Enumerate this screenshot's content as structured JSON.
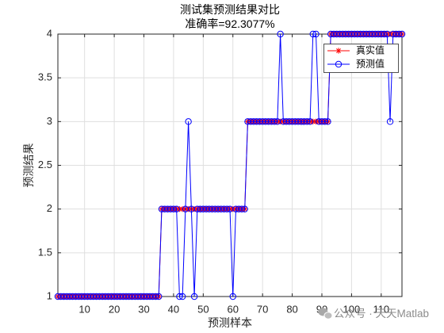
{
  "chart_data": {
    "type": "line",
    "title": "测试集预测结果对比",
    "subtitle": "准确率=92.3077%",
    "xlabel": "预测样本",
    "ylabel": "预测结果",
    "xlim": [
      1,
      117
    ],
    "ylim": [
      1,
      4
    ],
    "xticks": [
      10,
      20,
      30,
      40,
      50,
      60,
      70,
      80,
      90,
      100,
      110
    ],
    "xtick_labels": [
      "10",
      "20",
      "30",
      "40",
      "50",
      "60",
      "70",
      "80",
      "90",
      "100",
      "110"
    ],
    "yticks": [
      1,
      1.5,
      2,
      2.5,
      3,
      3.5,
      4
    ],
    "ytick_labels": [
      "1",
      "1.5",
      "2",
      "2.5",
      "3",
      "3.5",
      "4"
    ],
    "grid": true,
    "legend_placement": "top-right",
    "x": [
      1,
      2,
      3,
      4,
      5,
      6,
      7,
      8,
      9,
      10,
      11,
      12,
      13,
      14,
      15,
      16,
      17,
      18,
      19,
      20,
      21,
      22,
      23,
      24,
      25,
      26,
      27,
      28,
      29,
      30,
      31,
      32,
      33,
      34,
      35,
      36,
      37,
      38,
      39,
      40,
      41,
      42,
      43,
      44,
      45,
      46,
      47,
      48,
      49,
      50,
      51,
      52,
      53,
      54,
      55,
      56,
      57,
      58,
      59,
      60,
      61,
      62,
      63,
      64,
      65,
      66,
      67,
      68,
      69,
      70,
      71,
      72,
      73,
      74,
      75,
      76,
      77,
      78,
      79,
      80,
      81,
      82,
      83,
      84,
      85,
      86,
      87,
      88,
      89,
      90,
      91,
      92,
      93,
      94,
      95,
      96,
      97,
      98,
      99,
      100,
      101,
      102,
      103,
      104,
      105,
      106,
      107,
      108,
      109,
      110,
      111,
      112,
      113,
      114,
      115,
      116,
      117
    ],
    "series": [
      {
        "name": "真实值",
        "color": "#ff0000",
        "marker": "asterisk",
        "values": [
          1,
          1,
          1,
          1,
          1,
          1,
          1,
          1,
          1,
          1,
          1,
          1,
          1,
          1,
          1,
          1,
          1,
          1,
          1,
          1,
          1,
          1,
          1,
          1,
          1,
          1,
          1,
          1,
          1,
          1,
          1,
          1,
          1,
          1,
          1,
          2,
          2,
          2,
          2,
          2,
          2,
          2,
          2,
          2,
          2,
          2,
          2,
          2,
          2,
          2,
          2,
          2,
          2,
          2,
          2,
          2,
          2,
          2,
          2,
          2,
          2,
          2,
          2,
          2,
          3,
          3,
          3,
          3,
          3,
          3,
          3,
          3,
          3,
          3,
          3,
          3,
          3,
          3,
          3,
          3,
          3,
          3,
          3,
          3,
          3,
          3,
          3,
          3,
          3,
          3,
          3,
          3,
          4,
          4,
          4,
          4,
          4,
          4,
          4,
          4,
          4,
          4,
          4,
          4,
          4,
          4,
          4,
          4,
          4,
          4,
          4,
          4,
          4,
          4,
          4,
          4,
          4
        ]
      },
      {
        "name": "预测值",
        "color": "#0000ff",
        "marker": "circle",
        "values": [
          1,
          1,
          1,
          1,
          1,
          1,
          1,
          1,
          1,
          1,
          1,
          1,
          1,
          1,
          1,
          1,
          1,
          1,
          1,
          1,
          1,
          1,
          1,
          1,
          1,
          1,
          1,
          1,
          1,
          1,
          1,
          1,
          1,
          1,
          1,
          2,
          2,
          2,
          2,
          2,
          2,
          1,
          1,
          2,
          3,
          2,
          1,
          2,
          2,
          2,
          2,
          2,
          2,
          2,
          2,
          2,
          2,
          2,
          2,
          1,
          2,
          2,
          2,
          2,
          3,
          3,
          3,
          3,
          3,
          3,
          3,
          3,
          3,
          3,
          3,
          4,
          3,
          3,
          3,
          3,
          3,
          3,
          3,
          3,
          3,
          3,
          4,
          4,
          3,
          3,
          3,
          3,
          4,
          4,
          4,
          4,
          4,
          4,
          4,
          4,
          4,
          4,
          4,
          4,
          4,
          4,
          4,
          4,
          4,
          4,
          4,
          4,
          3,
          4,
          4,
          4,
          4
        ]
      }
    ]
  },
  "watermark": {
    "text": "公众号 · 天天Matlab",
    "icon": "wechat-icon"
  }
}
